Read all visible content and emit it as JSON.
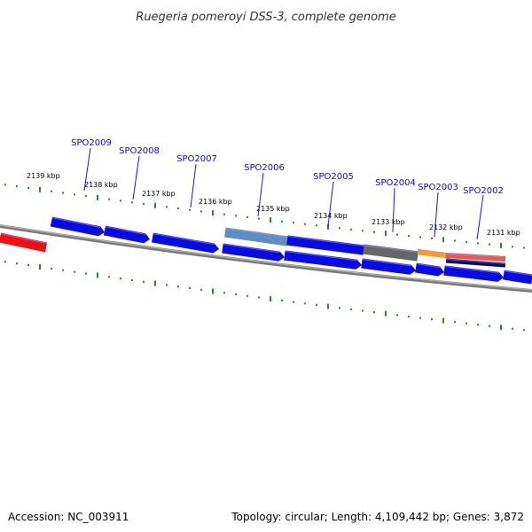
{
  "title": "Ruegeria pomeroyi DSS-3, complete genome",
  "footer": {
    "accession": "Accession: NC_003911",
    "summary": "Topology: circular; Length: 4,109,442 bp; Genes: 3,872"
  },
  "colors": {
    "gene": "#0a0ae6",
    "gene_highlight": "#5f8fc0",
    "gene_gray": "#666666",
    "gene_orange": "#ff9a22",
    "gene_salmon": "#f0584a",
    "gene_navy": "#0a0a6a",
    "gene_red": "#ee1111",
    "backbone": "#8a8a8a",
    "ticks": "#2a8a2a",
    "label_leader": "#1a1ad0"
  },
  "kbp_labels": [
    "2139 kbp",
    "2138 kbp",
    "2137 kbp",
    "2136 kbp",
    "2135 kbp",
    "2134 kbp",
    "2133 kbp",
    "2132 kbp",
    "2131 kbp"
  ],
  "gene_labels": [
    "SPO2009",
    "SPO2008",
    "SPO2007",
    "SPO2006",
    "SPO2005",
    "SPO2004",
    "SPO2003",
    "SPO2002"
  ]
}
